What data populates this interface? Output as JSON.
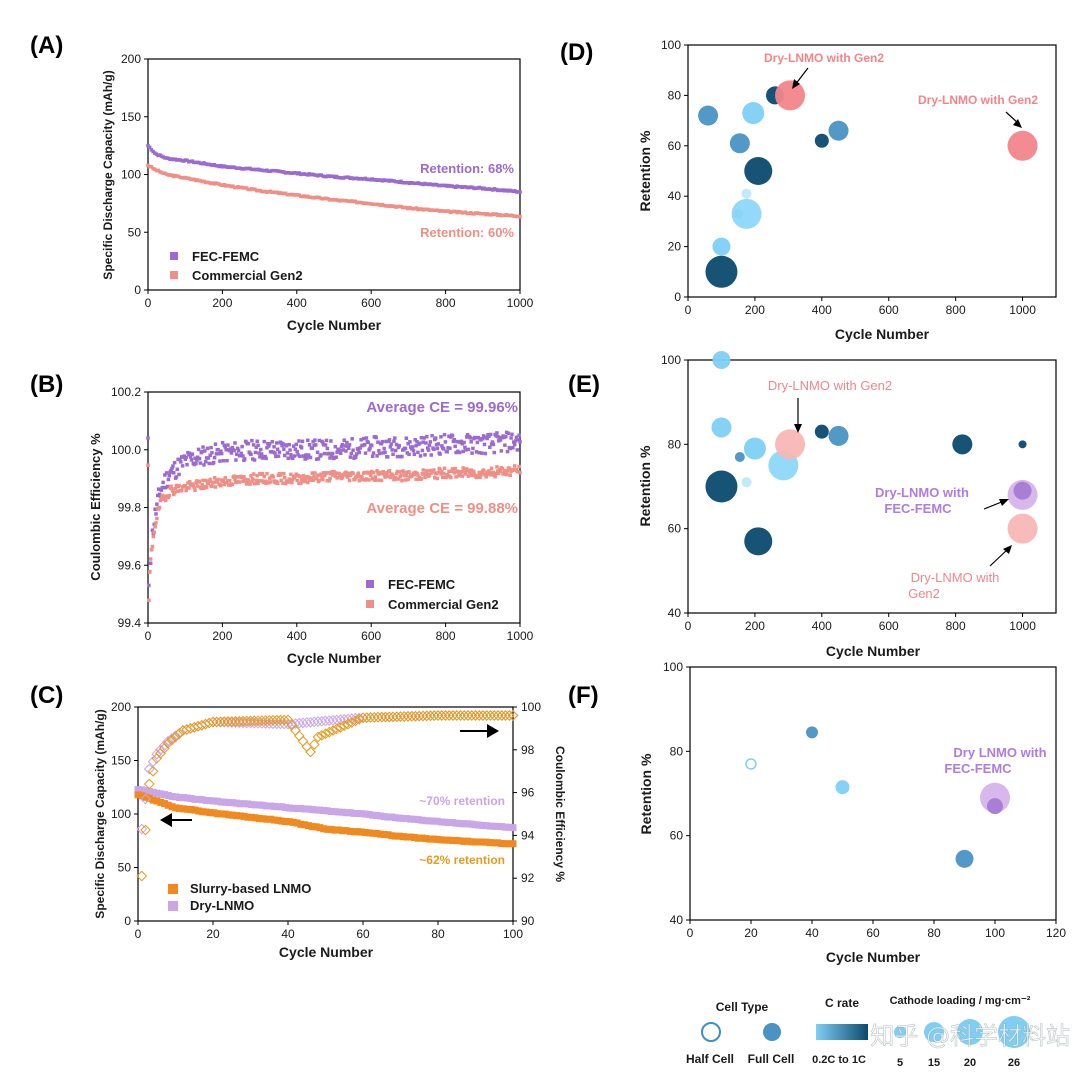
{
  "panels": [
    {
      "id": "A",
      "label": "(A)",
      "type": "scatter",
      "xlabel": "Cycle Number",
      "ylabel": "Specific Discharge Capacity (mAh/g)",
      "xlim": [
        0,
        1000
      ],
      "ylim": [
        0,
        200
      ],
      "xticks": [
        0,
        200,
        400,
        600,
        800,
        1000
      ],
      "yticks": [
        0,
        50,
        100,
        150,
        200
      ],
      "legend": [
        "FEC-FEMC",
        "Commercial Gen2"
      ],
      "series": [
        {
          "name": "FEC-FEMC",
          "color": "#9B6BD1",
          "x": [
            0,
            20,
            50,
            100,
            200,
            300,
            400,
            500,
            600,
            700,
            800,
            900,
            1000
          ],
          "y": [
            125,
            118,
            114,
            112,
            107,
            104,
            101,
            98,
            96,
            93,
            90,
            88,
            85
          ]
        },
        {
          "name": "Commercial Gen2",
          "color": "#F08F86",
          "x": [
            0,
            20,
            50,
            100,
            200,
            300,
            400,
            500,
            600,
            700,
            800,
            900,
            1000
          ],
          "y": [
            108,
            104,
            100,
            97,
            91,
            86,
            82,
            78,
            75,
            71,
            68,
            66,
            64
          ]
        }
      ],
      "annotations": [
        "Retention: 68%",
        "Retention: 60%"
      ]
    },
    {
      "id": "B",
      "label": "(B)",
      "type": "scatter",
      "xlabel": "Cycle Number",
      "ylabel": "Coulombic Efficiency %",
      "xlim": [
        0,
        1000
      ],
      "ylim": [
        99.4,
        100.2
      ],
      "xticks": [
        0,
        200,
        400,
        600,
        800,
        1000
      ],
      "yticks": [
        "99.4",
        "99.6",
        "99.8",
        "100.0",
        "100.2"
      ],
      "legend": [
        "FEC-FEMC",
        "Commercial Gen2"
      ],
      "series": [
        {
          "name": "FEC-FEMC",
          "color": "#9B6BD1",
          "x": [
            1,
            5,
            10,
            15,
            20,
            30,
            40,
            60,
            100,
            150,
            200,
            300,
            400,
            500,
            600,
            700,
            800,
            900,
            1000
          ],
          "y": [
            99.45,
            99.6,
            99.68,
            99.74,
            99.78,
            99.84,
            99.88,
            99.92,
            99.96,
            99.98,
            99.99,
            100.0,
            100.0,
            100.0,
            100.01,
            100.01,
            100.02,
            100.02,
            100.03
          ]
        },
        {
          "name": "Commercial Gen2",
          "color": "#F08F86",
          "x": [
            1,
            5,
            10,
            15,
            20,
            30,
            40,
            60,
            100,
            150,
            200,
            300,
            400,
            500,
            600,
            700,
            800,
            900,
            1000
          ],
          "y": [
            99.42,
            99.58,
            99.65,
            99.71,
            99.75,
            99.8,
            99.83,
            99.86,
            99.87,
            99.88,
            99.89,
            99.9,
            99.9,
            99.91,
            99.91,
            99.91,
            99.92,
            99.92,
            99.93
          ]
        }
      ],
      "annotations": [
        "Average CE = 99.96%",
        "Average CE = 99.88%"
      ]
    },
    {
      "id": "C",
      "label": "(C)",
      "type": "scatter",
      "xlabel": "Cycle Number",
      "ylabel": "Specific Discharge Capacity (mAh/g)",
      "y2label": "Coulombic Efficiency %",
      "xlim": [
        0,
        100
      ],
      "ylim": [
        0,
        200
      ],
      "y2lim": [
        90,
        100
      ],
      "xticks": [
        0,
        20,
        40,
        60,
        80,
        100
      ],
      "yticks": [
        0,
        50,
        100,
        150,
        200
      ],
      "y2ticks": [
        90,
        92,
        94,
        96,
        98,
        100
      ],
      "legend": [
        "Slurry-based LNMO",
        "Dry-LNMO"
      ],
      "series": [
        {
          "name": "Slurry-based LNMO",
          "color": "#F08A1E",
          "x": [
            0,
            10,
            20,
            30,
            40,
            50,
            60,
            70,
            80,
            90,
            100
          ],
          "y": [
            118,
            106,
            101,
            97,
            93,
            86,
            83,
            79,
            76,
            74,
            72
          ]
        },
        {
          "name": "Dry-LNMO",
          "color": "#C9A6E8",
          "x": [
            0,
            10,
            20,
            30,
            40,
            50,
            60,
            70,
            80,
            90,
            100
          ],
          "y": [
            123,
            116,
            112,
            109,
            106,
            103,
            100,
            96,
            93,
            90,
            87
          ]
        }
      ],
      "annotations": [
        "~70% retention",
        "~62% retention"
      ]
    },
    {
      "id": "D",
      "label": "(D)",
      "type": "bubble",
      "xlabel": "Cycle Number",
      "ylabel": "Retention %",
      "xlim": [
        0,
        1100
      ],
      "ylim": [
        0,
        100
      ],
      "xticks": [
        0,
        200,
        400,
        600,
        800,
        1000
      ],
      "yticks": [
        0,
        20,
        40,
        60,
        80,
        100
      ],
      "points": [
        {
          "x": 100,
          "y": 10,
          "r": 16,
          "c": "#0B4A6E"
        },
        {
          "x": 100,
          "y": 20,
          "r": 9,
          "c": "#7FCFF5"
        },
        {
          "x": 150,
          "y": 33,
          "r": 5,
          "c": "#4A93C4"
        },
        {
          "x": 175,
          "y": 33,
          "r": 15,
          "c": "#8DD8FA"
        },
        {
          "x": 175,
          "y": 41,
          "r": 5,
          "c": "#BEE8FC"
        },
        {
          "x": 210,
          "y": 50,
          "r": 14,
          "c": "#0B4A6E"
        },
        {
          "x": 155,
          "y": 61,
          "r": 10,
          "c": "#4A93C4"
        },
        {
          "x": 400,
          "y": 62,
          "r": 7,
          "c": "#0B4A6E"
        },
        {
          "x": 450,
          "y": 66,
          "r": 10,
          "c": "#4A93C4"
        },
        {
          "x": 60,
          "y": 72,
          "r": 10,
          "c": "#4A93C4"
        },
        {
          "x": 195,
          "y": 73,
          "r": 11,
          "c": "#7FCFF5"
        },
        {
          "x": 260,
          "y": 80,
          "r": 9,
          "c": "#0B4A6E"
        },
        {
          "x": 305,
          "y": 80,
          "r": 15,
          "c": "#F3858A"
        },
        {
          "x": 1000,
          "y": 60,
          "r": 15,
          "c": "#F3858A"
        }
      ],
      "annotations": [
        "Dry-LNMO with Gen2",
        "Dry-LNMO with Gen2"
      ]
    },
    {
      "id": "E",
      "label": "(E)",
      "type": "bubble",
      "xlabel": "Cycle Number",
      "ylabel": "Retention %",
      "xlim": [
        0,
        1100
      ],
      "ylim": [
        40,
        100
      ],
      "xticks": [
        0,
        200,
        400,
        600,
        800,
        1000
      ],
      "yticks": [
        40,
        60,
        80,
        100
      ],
      "points": [
        {
          "x": 100,
          "y": 100,
          "r": 9,
          "c": "#7FCFF5"
        },
        {
          "x": 100,
          "y": 84,
          "r": 10,
          "c": "#7FCFF5"
        },
        {
          "x": 200,
          "y": 79,
          "r": 11,
          "c": "#7FCFF5"
        },
        {
          "x": 155,
          "y": 77,
          "r": 5,
          "c": "#4A93C4"
        },
        {
          "x": 285,
          "y": 75,
          "r": 15,
          "c": "#8DD8FA"
        },
        {
          "x": 175,
          "y": 71,
          "r": 5,
          "c": "#BEE8FC"
        },
        {
          "x": 100,
          "y": 70,
          "r": 16,
          "c": "#0B4A6E"
        },
        {
          "x": 210,
          "y": 57,
          "r": 14,
          "c": "#0B4A6E"
        },
        {
          "x": 400,
          "y": 83,
          "r": 7,
          "c": "#0B4A6E"
        },
        {
          "x": 450,
          "y": 82,
          "r": 10,
          "c": "#4A93C4"
        },
        {
          "x": 820,
          "y": 80,
          "r": 10,
          "c": "#0B4A6E"
        },
        {
          "x": 1000,
          "y": 80,
          "r": 4,
          "c": "#0B4A6E"
        },
        {
          "x": 305,
          "y": 80,
          "r": 15,
          "c": "#F8B7B5"
        },
        {
          "x": 1000,
          "y": 68,
          "r": 15,
          "c": "#D6B3EC"
        },
        {
          "x": 1000,
          "y": 69,
          "r": 9,
          "c": "#A67BD4"
        },
        {
          "x": 1000,
          "y": 60,
          "r": 15,
          "c": "#F8B7B5"
        }
      ],
      "annotations": [
        "Dry-LNMO with Gen2",
        "Dry-LNMO with FEC-FEMC",
        "Dry-LNMO with Gen2"
      ]
    },
    {
      "id": "F",
      "label": "(F)",
      "type": "bubble",
      "xlabel": "Cycle Number",
      "ylabel": "Retention %",
      "xlim": [
        0,
        120
      ],
      "ylim": [
        40,
        100
      ],
      "xticks": [
        0,
        20,
        40,
        60,
        80,
        100,
        120
      ],
      "yticks": [
        40,
        60,
        80,
        100
      ],
      "points": [
        {
          "x": 20,
          "y": 77,
          "r": 5,
          "c": "#7FCFF5",
          "hollow": true
        },
        {
          "x": 40,
          "y": 84.5,
          "r": 6,
          "c": "#4A93C4"
        },
        {
          "x": 50,
          "y": 71.5,
          "r": 7,
          "c": "#7FCFF5"
        },
        {
          "x": 90,
          "y": 54.5,
          "r": 9,
          "c": "#4A93C4"
        },
        {
          "x": 100,
          "y": 69,
          "r": 15,
          "c": "#D6B3EC"
        },
        {
          "x": 100,
          "y": 67,
          "r": 8,
          "c": "#A67BD4"
        }
      ],
      "annotations": [
        "Dry LNMO with FEC-FEMC"
      ]
    }
  ],
  "chart_data": [
    {
      "type": "scatter",
      "title": "(A)",
      "xlabel": "Cycle Number",
      "ylabel": "Specific Discharge Capacity (mAh/g)",
      "xlim": [
        0,
        1000
      ],
      "ylim": [
        0,
        200
      ],
      "series": [
        {
          "name": "FEC-FEMC",
          "retention": "Retention: 68%"
        },
        {
          "name": "Commercial Gen2",
          "retention": "Retention: 60%"
        }
      ]
    },
    {
      "type": "scatter",
      "title": "(B)",
      "xlabel": "Cycle Number",
      "ylabel": "Coulombic Efficiency %",
      "xlim": [
        0,
        1000
      ],
      "ylim": [
        99.4,
        100.2
      ],
      "series": [
        {
          "name": "FEC-FEMC",
          "average": "Average CE = 99.96%"
        },
        {
          "name": "Commercial Gen2",
          "average": "Average CE = 99.88%"
        }
      ]
    },
    {
      "type": "scatter",
      "title": "(C)",
      "xlabel": "Cycle Number",
      "ylabel": "Specific Discharge Capacity (mAh/g)",
      "y2label": "Coulombic Efficiency %",
      "xlim": [
        0,
        100
      ],
      "ylim": [
        0,
        200
      ],
      "y2lim": [
        90,
        100
      ]
    },
    {
      "type": "scatter",
      "title": "(D)",
      "xlabel": "Cycle Number",
      "ylabel": "Retention %",
      "xlim": [
        0,
        1100
      ],
      "ylim": [
        0,
        100
      ]
    },
    {
      "type": "scatter",
      "title": "(E)",
      "xlabel": "Cycle Number",
      "ylabel": "Retention %",
      "xlim": [
        0,
        1100
      ],
      "ylim": [
        40,
        100
      ]
    },
    {
      "type": "scatter",
      "title": "(F)",
      "xlabel": "Cycle Number",
      "ylabel": "Retention %",
      "xlim": [
        0,
        120
      ],
      "ylim": [
        40,
        100
      ]
    }
  ],
  "key": {
    "cell_type": "Cell Type",
    "half_cell": "Half Cell",
    "full_cell": "Full Cell",
    "c_rate": "C rate",
    "c_rate_range": "0.2C to 1C",
    "loading": "Cathode loading / mg·cm⁻²",
    "loading_values": [
      "5",
      "15",
      "20",
      "26"
    ]
  },
  "watermark": "知乎 @科学材料站",
  "colors": {
    "fec": "#9B6BD1",
    "gen2": "#F08F86",
    "slurry": "#F08A1E",
    "dry": "#C9A6E8",
    "navy": "#0B4A6E",
    "light": "#7FCFF5",
    "mid": "#4A93C4",
    "pink": "#F3858A",
    "purple": "#A67BD4"
  }
}
